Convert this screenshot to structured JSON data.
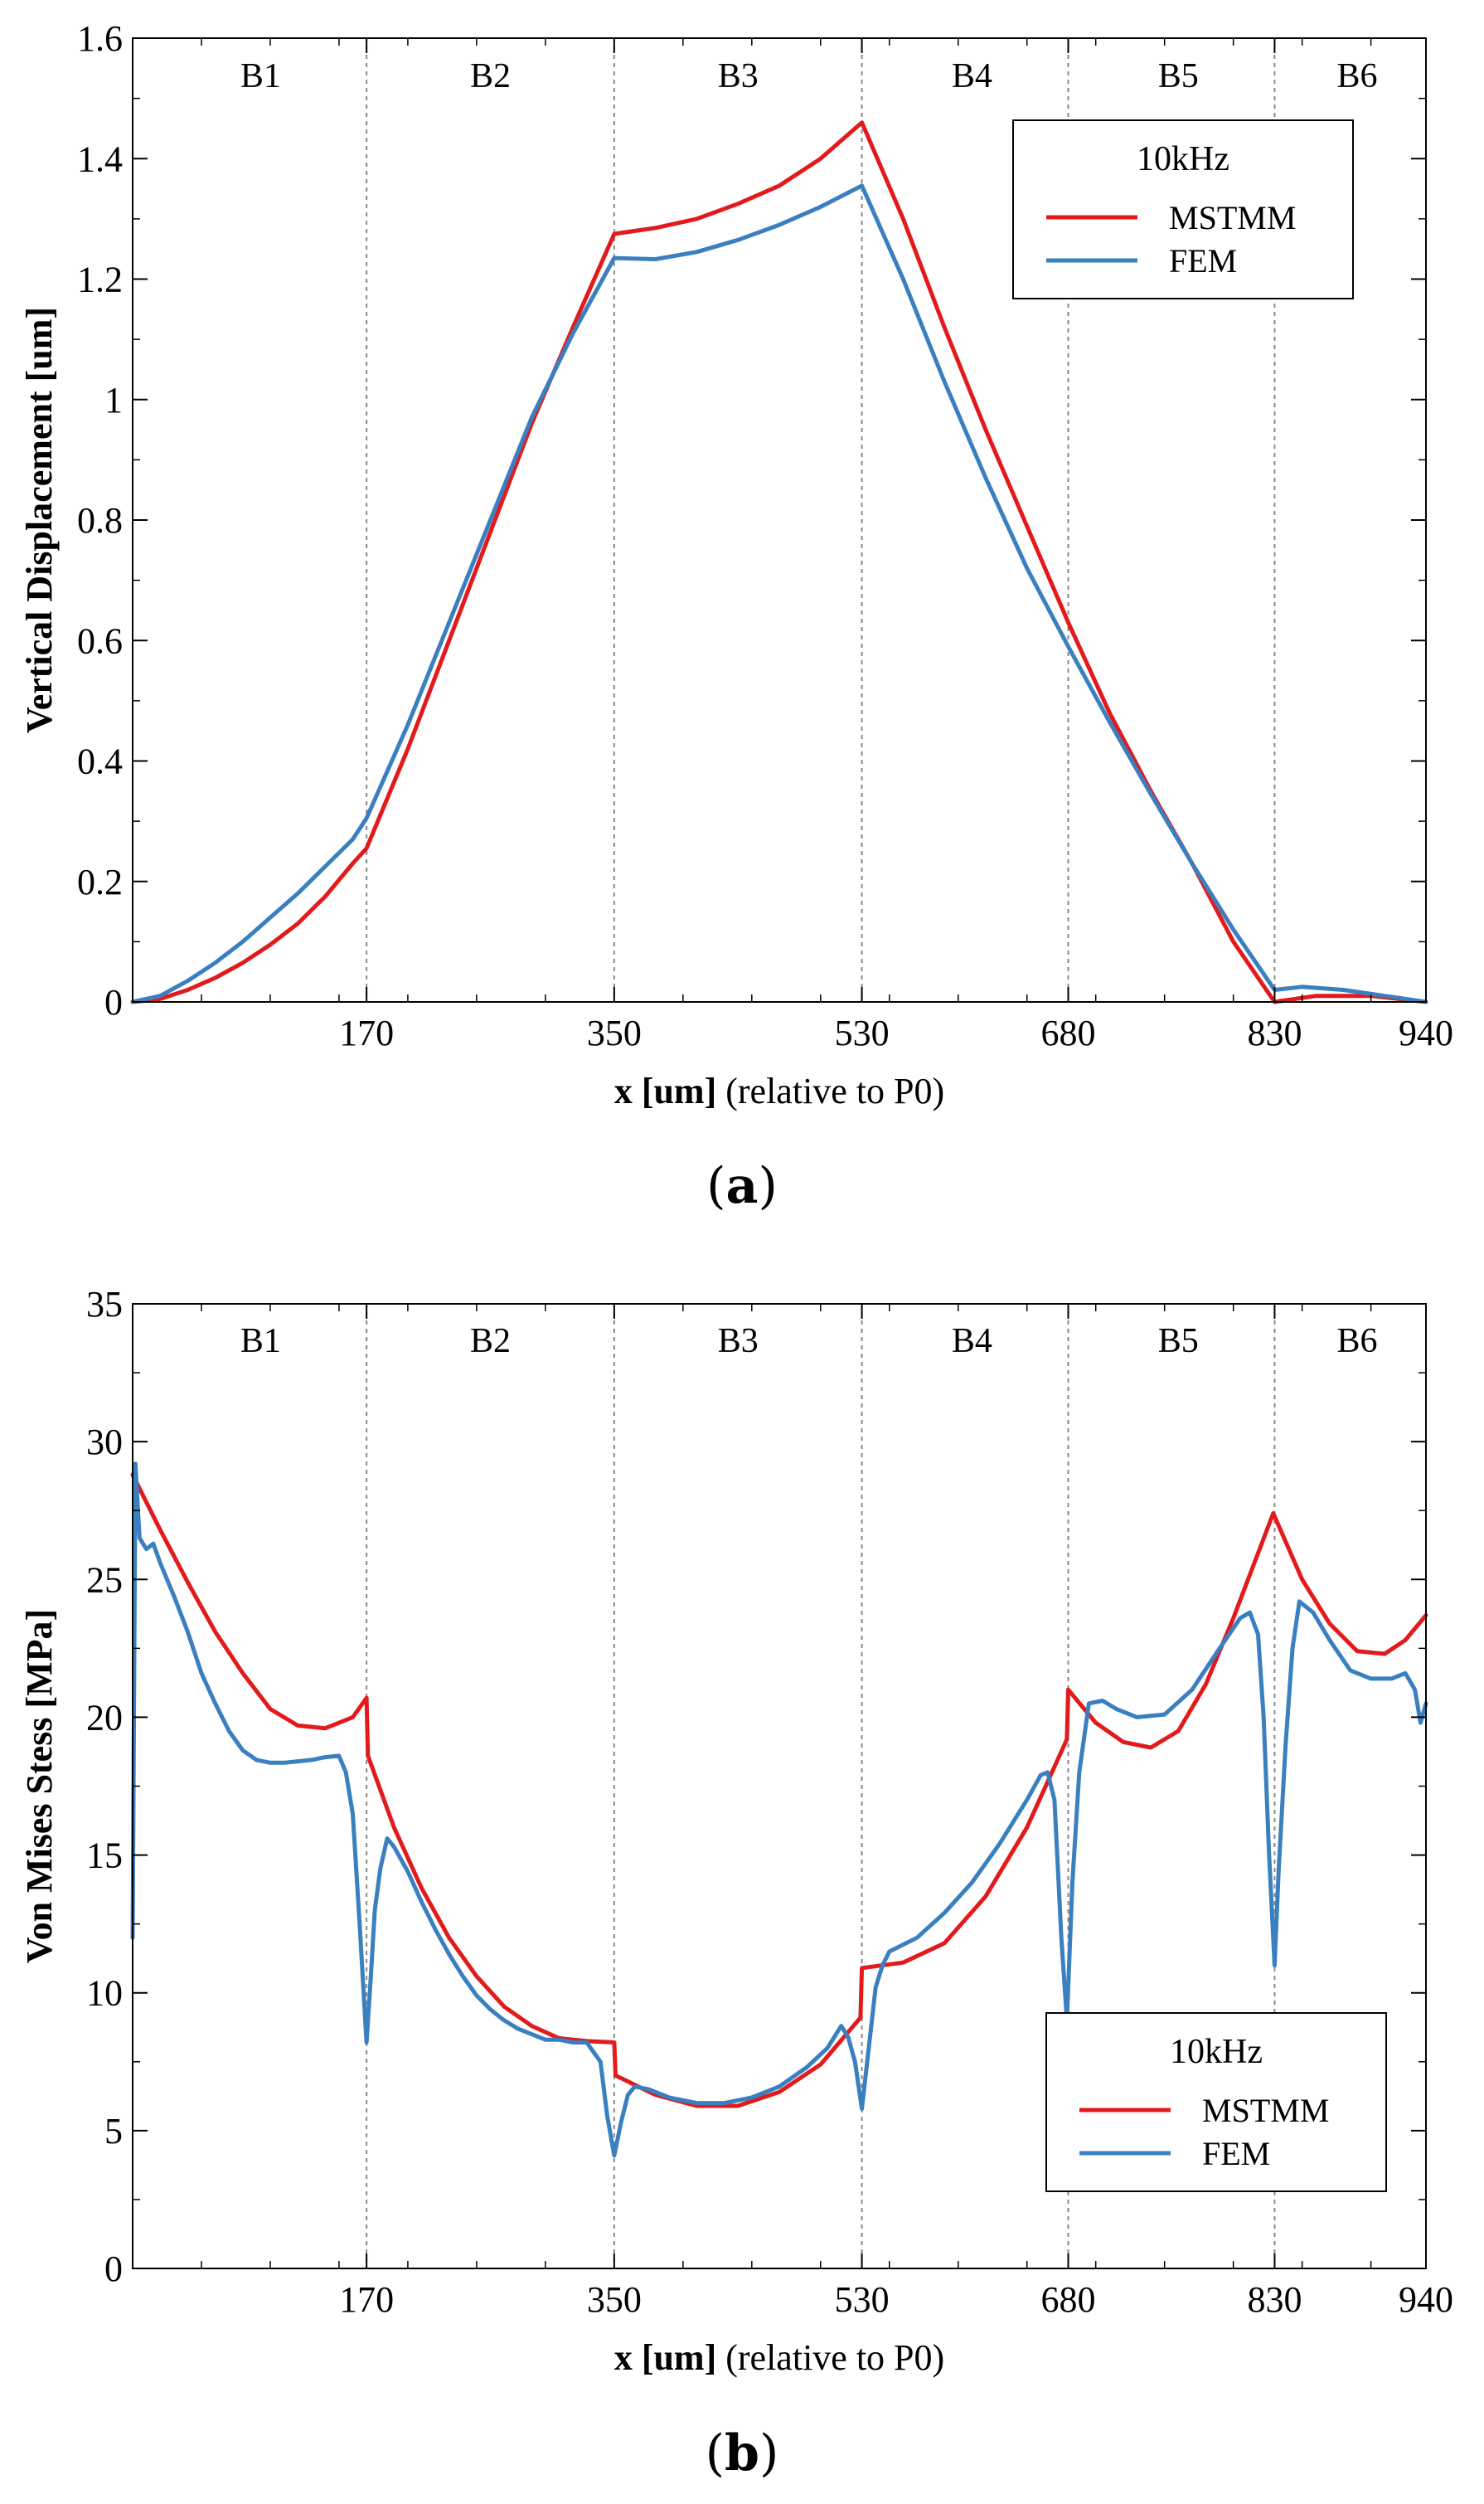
{
  "colors": {
    "mstmm": "#e31a1c",
    "fem": "#3a7fbf",
    "axis": "#000000",
    "divider": "#888888"
  },
  "chart_data": [
    {
      "type": "line",
      "panel": "a",
      "panel_label": "a",
      "xlabel_bold": "x [um]",
      "xlabel_rest": " (relative to P0)",
      "ylabel": "Vertical Displacement [um]",
      "xlim": [
        0,
        940
      ],
      "ylim": [
        0,
        1.6
      ],
      "xticks": [
        170,
        350,
        530,
        680,
        830,
        940
      ],
      "yticks": [
        0,
        0.2,
        0.4,
        0.6,
        0.8,
        1,
        1.2,
        1.4,
        1.6
      ],
      "ytick_labels": [
        "0",
        "0.2",
        "0.4",
        "0.6",
        "0.8",
        "1",
        "1.2",
        "1.4",
        "1.6"
      ],
      "dividers": [
        170,
        350,
        530,
        680,
        830
      ],
      "regions": [
        {
          "label": "B1",
          "x": 93
        },
        {
          "label": "B2",
          "x": 260
        },
        {
          "label": "B3",
          "x": 440
        },
        {
          "label": "B4",
          "x": 610
        },
        {
          "label": "B5",
          "x": 760
        },
        {
          "label": "B6",
          "x": 890
        }
      ],
      "legend": {
        "title": "10kHz",
        "position": "top-right"
      },
      "series": [
        {
          "name": "MSTMM",
          "color": "#e31a1c",
          "points": [
            [
              0,
              0
            ],
            [
              20,
              0.005
            ],
            [
              40,
              0.02
            ],
            [
              60,
              0.04
            ],
            [
              80,
              0.065
            ],
            [
              100,
              0.095
            ],
            [
              120,
              0.13
            ],
            [
              140,
              0.175
            ],
            [
              160,
              0.23
            ],
            [
              170,
              0.255
            ],
            [
              200,
              0.42
            ],
            [
              230,
              0.6
            ],
            [
              260,
              0.78
            ],
            [
              290,
              0.96
            ],
            [
              320,
              1.12
            ],
            [
              350,
              1.275
            ],
            [
              380,
              1.285
            ],
            [
              410,
              1.3
            ],
            [
              440,
              1.325
            ],
            [
              470,
              1.355
            ],
            [
              500,
              1.4
            ],
            [
              530,
              1.46
            ],
            [
              560,
              1.3
            ],
            [
              590,
              1.12
            ],
            [
              620,
              0.95
            ],
            [
              650,
              0.79
            ],
            [
              680,
              0.63
            ],
            [
              710,
              0.48
            ],
            [
              740,
              0.35
            ],
            [
              770,
              0.23
            ],
            [
              800,
              0.1
            ],
            [
              830,
              0
            ],
            [
              860,
              0.01
            ],
            [
              900,
              0.01
            ],
            [
              940,
              0
            ]
          ]
        },
        {
          "name": "FEM",
          "color": "#3a7fbf",
          "points": [
            [
              0,
              0
            ],
            [
              20,
              0.01
            ],
            [
              40,
              0.035
            ],
            [
              60,
              0.065
            ],
            [
              80,
              0.1
            ],
            [
              100,
              0.14
            ],
            [
              120,
              0.18
            ],
            [
              140,
              0.225
            ],
            [
              160,
              0.27
            ],
            [
              170,
              0.305
            ],
            [
              200,
              0.46
            ],
            [
              230,
              0.63
            ],
            [
              260,
              0.8
            ],
            [
              290,
              0.97
            ],
            [
              320,
              1.11
            ],
            [
              350,
              1.235
            ],
            [
              380,
              1.233
            ],
            [
              410,
              1.245
            ],
            [
              440,
              1.265
            ],
            [
              470,
              1.29
            ],
            [
              500,
              1.32
            ],
            [
              530,
              1.355
            ],
            [
              560,
              1.2
            ],
            [
              590,
              1.03
            ],
            [
              620,
              0.87
            ],
            [
              650,
              0.72
            ],
            [
              680,
              0.59
            ],
            [
              710,
              0.465
            ],
            [
              740,
              0.345
            ],
            [
              770,
              0.23
            ],
            [
              800,
              0.12
            ],
            [
              830,
              0.02
            ],
            [
              850,
              0.025
            ],
            [
              880,
              0.02
            ],
            [
              910,
              0.01
            ],
            [
              940,
              0
            ]
          ]
        }
      ]
    },
    {
      "type": "line",
      "panel": "b",
      "panel_label": "b",
      "xlabel_bold": "x [um]",
      "xlabel_rest": " (relative to P0)",
      "ylabel": "Von Mises Stess [MPa]",
      "xlim": [
        0,
        940
      ],
      "ylim": [
        0,
        35
      ],
      "xticks": [
        170,
        350,
        530,
        680,
        830,
        940
      ],
      "yticks": [
        0,
        5,
        10,
        15,
        20,
        25,
        30,
        35
      ],
      "ytick_labels": [
        "0",
        "5",
        "10",
        "15",
        "20",
        "25",
        "30",
        "35"
      ],
      "dividers": [
        170,
        350,
        530,
        680,
        830
      ],
      "regions": [
        {
          "label": "B1",
          "x": 93
        },
        {
          "label": "B2",
          "x": 260
        },
        {
          "label": "B3",
          "x": 440
        },
        {
          "label": "B4",
          "x": 610
        },
        {
          "label": "B5",
          "x": 760
        },
        {
          "label": "B6",
          "x": 890
        }
      ],
      "legend": {
        "title": "10kHz",
        "position": "bottom-right"
      },
      "series": [
        {
          "name": "MSTMM",
          "color": "#e31a1c",
          "points": [
            [
              0,
              28.8
            ],
            [
              20,
              26.8
            ],
            [
              40,
              24.9
            ],
            [
              60,
              23.1
            ],
            [
              80,
              21.6
            ],
            [
              100,
              20.3
            ],
            [
              120,
              19.7
            ],
            [
              140,
              19.6
            ],
            [
              160,
              20.0
            ],
            [
              170,
              20.7
            ],
            [
              171,
              18.6
            ],
            [
              190,
              16.0
            ],
            [
              210,
              13.8
            ],
            [
              230,
              12.0
            ],
            [
              250,
              10.6
            ],
            [
              270,
              9.5
            ],
            [
              290,
              8.8
            ],
            [
              310,
              8.35
            ],
            [
              330,
              8.25
            ],
            [
              350,
              8.2
            ],
            [
              351,
              7.0
            ],
            [
              380,
              6.3
            ],
            [
              410,
              5.9
            ],
            [
              440,
              5.9
            ],
            [
              470,
              6.4
            ],
            [
              500,
              7.4
            ],
            [
              529,
              9.1
            ],
            [
              530,
              10.9
            ],
            [
              560,
              11.1
            ],
            [
              590,
              11.8
            ],
            [
              620,
              13.5
            ],
            [
              650,
              16.0
            ],
            [
              679,
              19.2
            ],
            [
              680,
              21.0
            ],
            [
              700,
              19.8
            ],
            [
              720,
              19.1
            ],
            [
              740,
              18.9
            ],
            [
              760,
              19.5
            ],
            [
              780,
              21.2
            ],
            [
              800,
              23.6
            ],
            [
              829,
              27.4
            ],
            [
              850,
              25.0
            ],
            [
              870,
              23.4
            ],
            [
              890,
              22.4
            ],
            [
              910,
              22.3
            ],
            [
              925,
              22.8
            ],
            [
              940,
              23.7
            ]
          ]
        },
        {
          "name": "FEM",
          "color": "#3a7fbf",
          "points": [
            [
              0,
              12
            ],
            [
              2,
              29.2
            ],
            [
              5,
              26.5
            ],
            [
              10,
              26.1
            ],
            [
              15,
              26.3
            ],
            [
              20,
              25.6
            ],
            [
              30,
              24.4
            ],
            [
              40,
              23.1
            ],
            [
              50,
              21.6
            ],
            [
              60,
              20.5
            ],
            [
              70,
              19.5
            ],
            [
              80,
              18.8
            ],
            [
              90,
              18.45
            ],
            [
              100,
              18.35
            ],
            [
              110,
              18.35
            ],
            [
              120,
              18.4
            ],
            [
              130,
              18.45
            ],
            [
              140,
              18.55
            ],
            [
              150,
              18.6
            ],
            [
              155,
              18.0
            ],
            [
              160,
              16.5
            ],
            [
              165,
              12.5
            ],
            [
              170,
              8.2
            ],
            [
              173,
              10.5
            ],
            [
              176,
              13.0
            ],
            [
              180,
              14.5
            ],
            [
              185,
              15.6
            ],
            [
              190,
              15.3
            ],
            [
              200,
              14.4
            ],
            [
              210,
              13.3
            ],
            [
              220,
              12.3
            ],
            [
              230,
              11.4
            ],
            [
              240,
              10.6
            ],
            [
              250,
              9.9
            ],
            [
              260,
              9.4
            ],
            [
              270,
              9.0
            ],
            [
              280,
              8.7
            ],
            [
              290,
              8.5
            ],
            [
              300,
              8.3
            ],
            [
              310,
              8.3
            ],
            [
              320,
              8.2
            ],
            [
              330,
              8.2
            ],
            [
              340,
              7.5
            ],
            [
              345,
              5.5
            ],
            [
              350,
              4.1
            ],
            [
              355,
              5.3
            ],
            [
              360,
              6.3
            ],
            [
              365,
              6.6
            ],
            [
              375,
              6.5
            ],
            [
              390,
              6.2
            ],
            [
              410,
              6.0
            ],
            [
              430,
              6.0
            ],
            [
              450,
              6.2
            ],
            [
              470,
              6.6
            ],
            [
              490,
              7.3
            ],
            [
              505,
              8.0
            ],
            [
              515,
              8.8
            ],
            [
              520,
              8.4
            ],
            [
              525,
              7.5
            ],
            [
              530,
              5.8
            ],
            [
              535,
              8.0
            ],
            [
              540,
              10.2
            ],
            [
              545,
              11.0
            ],
            [
              550,
              11.5
            ],
            [
              570,
              12.0
            ],
            [
              590,
              12.9
            ],
            [
              610,
              14.0
            ],
            [
              630,
              15.4
            ],
            [
              650,
              17.0
            ],
            [
              660,
              17.9
            ],
            [
              665,
              18.0
            ],
            [
              670,
              17.0
            ],
            [
              675,
              12.0
            ],
            [
              679,
              9.0
            ],
            [
              683,
              14.0
            ],
            [
              688,
              18.0
            ],
            [
              695,
              20.5
            ],
            [
              705,
              20.6
            ],
            [
              715,
              20.3
            ],
            [
              730,
              20.0
            ],
            [
              750,
              20.1
            ],
            [
              770,
              21.0
            ],
            [
              790,
              22.5
            ],
            [
              805,
              23.6
            ],
            [
              812,
              23.8
            ],
            [
              818,
              23.0
            ],
            [
              822,
              20.0
            ],
            [
              826,
              15.0
            ],
            [
              830,
              11.0
            ],
            [
              833,
              14.5
            ],
            [
              838,
              19.0
            ],
            [
              843,
              22.5
            ],
            [
              848,
              24.2
            ],
            [
              858,
              23.8
            ],
            [
              870,
              22.8
            ],
            [
              885,
              21.7
            ],
            [
              900,
              21.4
            ],
            [
              915,
              21.4
            ],
            [
              925,
              21.6
            ],
            [
              932,
              21.0
            ],
            [
              936,
              19.8
            ],
            [
              940,
              20.5
            ]
          ]
        }
      ]
    }
  ]
}
